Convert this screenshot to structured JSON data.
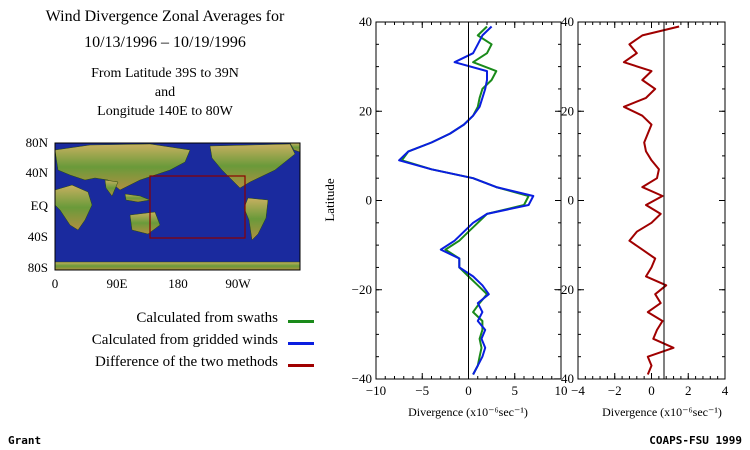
{
  "header": {
    "title_line1": "Wind Divergence Zonal Averages for",
    "title_line2": "10/13/1996 – 10/19/1996",
    "subtitle_line1": "From Latitude 39S to 39N",
    "subtitle_line2": "and",
    "subtitle_line3": "Longitude 140E to 80W"
  },
  "map": {
    "y_ticks": [
      "80N",
      "40N",
      "EQ",
      "40S",
      "80S"
    ],
    "x_ticks": [
      "0",
      "90E",
      "180",
      "90W"
    ],
    "ocean_color": "#1a2a9e",
    "box_color": "#8b0000"
  },
  "legend": [
    {
      "label": "Calculated from swaths",
      "color": "#1a8a1a"
    },
    {
      "label": "Calculated from gridded winds",
      "color": "#0a1ee0"
    },
    {
      "label": "Difference of the two methods",
      "color": "#a00000"
    }
  ],
  "footer": {
    "left": "Grant",
    "right": "COAPS-FSU 1999"
  },
  "chart_data": [
    {
      "type": "line",
      "ylabel": "Latitude",
      "xlabel": "Divergence (x10⁻⁶sec⁻¹)",
      "xlim": [
        -10,
        10
      ],
      "ylim": [
        -40,
        40
      ],
      "x_ticks": [
        "−10",
        "−5",
        "0",
        "5",
        "10"
      ],
      "y_ticks": [
        "40",
        "20",
        "0",
        "−20",
        "−40"
      ],
      "latitudes": [
        39,
        37,
        35,
        33,
        31,
        29,
        27,
        25,
        23,
        21,
        19,
        17,
        15,
        13,
        11,
        9,
        7,
        5,
        3,
        1,
        -1,
        -3,
        -5,
        -7,
        -9,
        -11,
        -13,
        -15,
        -17,
        -19,
        -21,
        -23,
        -25,
        -27,
        -29,
        -31,
        -33,
        -35,
        -37,
        -39
      ],
      "series": [
        {
          "name": "Calculated from swaths",
          "color": "#1a8a1a",
          "values": [
            2,
            1,
            2.5,
            2,
            0.5,
            3,
            2.5,
            1.5,
            1.2,
            1,
            0.5,
            -0.5,
            -2,
            -4,
            -6.5,
            -7.2,
            -4,
            0.5,
            3,
            6.5,
            6,
            2,
            1,
            0,
            -1,
            -2.5,
            -1,
            -1,
            0,
            1,
            2,
            1.2,
            0.5,
            1.5,
            1.5,
            1.2,
            1.4,
            1.2,
            1,
            0.5
          ]
        },
        {
          "name": "Calculated from gridded winds",
          "color": "#0a1ee0",
          "values": [
            2.5,
            1.5,
            1,
            0.5,
            -1.5,
            2,
            2,
            1.8,
            1.5,
            1.2,
            0.5,
            -0.5,
            -2,
            -4,
            -6.5,
            -7.5,
            -4,
            0.5,
            3,
            7,
            6.5,
            2,
            0.5,
            -0.5,
            -1.5,
            -3,
            -1,
            -1,
            0.5,
            1.5,
            2.2,
            1,
            1.5,
            1,
            1.8,
            1.4,
            1.8,
            1.5,
            1,
            0.5
          ]
        }
      ]
    },
    {
      "type": "line",
      "xlabel": "Divergence (x10⁻⁶sec⁻¹)",
      "xlim": [
        -4,
        4
      ],
      "ylim": [
        -40,
        40
      ],
      "x_ticks": [
        "−4",
        "−2",
        "0",
        "2",
        "4"
      ],
      "y_ticks": [
        "40",
        "20",
        "0",
        "−20",
        "−40"
      ],
      "latitudes": [
        39,
        37,
        35,
        33,
        31,
        29,
        27,
        25,
        23,
        21,
        19,
        17,
        15,
        13,
        11,
        9,
        7,
        5,
        3,
        1,
        -1,
        -3,
        -5,
        -7,
        -9,
        -11,
        -13,
        -15,
        -17,
        -19,
        -21,
        -23,
        -25,
        -27,
        -29,
        -31,
        -33,
        -35,
        -37,
        -39
      ],
      "series": [
        {
          "name": "Difference of the two methods",
          "color": "#a00000",
          "values": [
            1.5,
            -0.5,
            -1.2,
            -0.8,
            -1.5,
            0,
            -0.5,
            0.2,
            -0.3,
            -1.5,
            -0.5,
            0,
            -0.2,
            -0.4,
            -0.3,
            0,
            0.4,
            0.3,
            -0.5,
            0.6,
            -0.3,
            0.5,
            0,
            -0.8,
            -1.2,
            -0.5,
            0.2,
            0,
            -0.3,
            0.8,
            0.2,
            0.5,
            -0.2,
            0.6,
            0.3,
            0.1,
            1.2,
            -0.2,
            0,
            -0.2
          ]
        }
      ]
    }
  ]
}
